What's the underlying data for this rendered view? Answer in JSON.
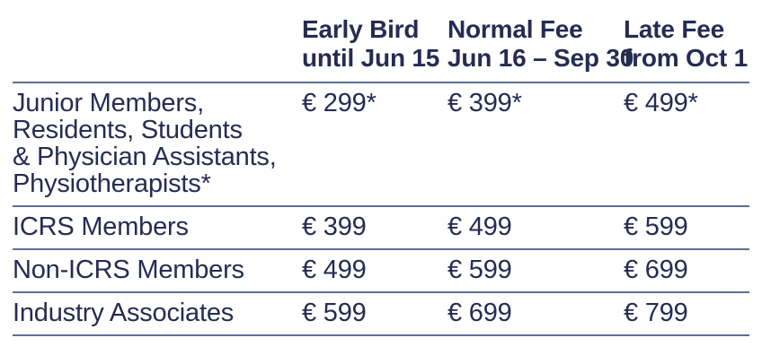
{
  "table": {
    "columns": [
      {
        "label": "Early Bird",
        "sublabel": "until Jun 15"
      },
      {
        "label": "Normal Fee",
        "sublabel": "Jun 16 – Sep 30"
      },
      {
        "label": "Late Fee",
        "sublabel": "from Oct 1"
      }
    ],
    "rows": [
      {
        "category": "Junior Members,\nResidents, Students\n& Physician Assistants,\nPhysiotherapists*",
        "early_bird": "€ 299*",
        "normal_fee": "€ 399*",
        "late_fee": "€ 499*"
      },
      {
        "category": "ICRS Members",
        "early_bird": "€ 399",
        "normal_fee": "€ 499",
        "late_fee": "€ 599"
      },
      {
        "category": "Non-ICRS Members",
        "early_bird": "€ 499",
        "normal_fee": "€ 599",
        "late_fee": "€ 699"
      },
      {
        "category": "Industry Associates",
        "early_bird": "€ 599",
        "normal_fee": "€ 699",
        "late_fee": "€ 799"
      }
    ]
  },
  "colors": {
    "text_navy": "#252c53",
    "rule_blue": "#5c6f96",
    "background": "#ffffff"
  }
}
